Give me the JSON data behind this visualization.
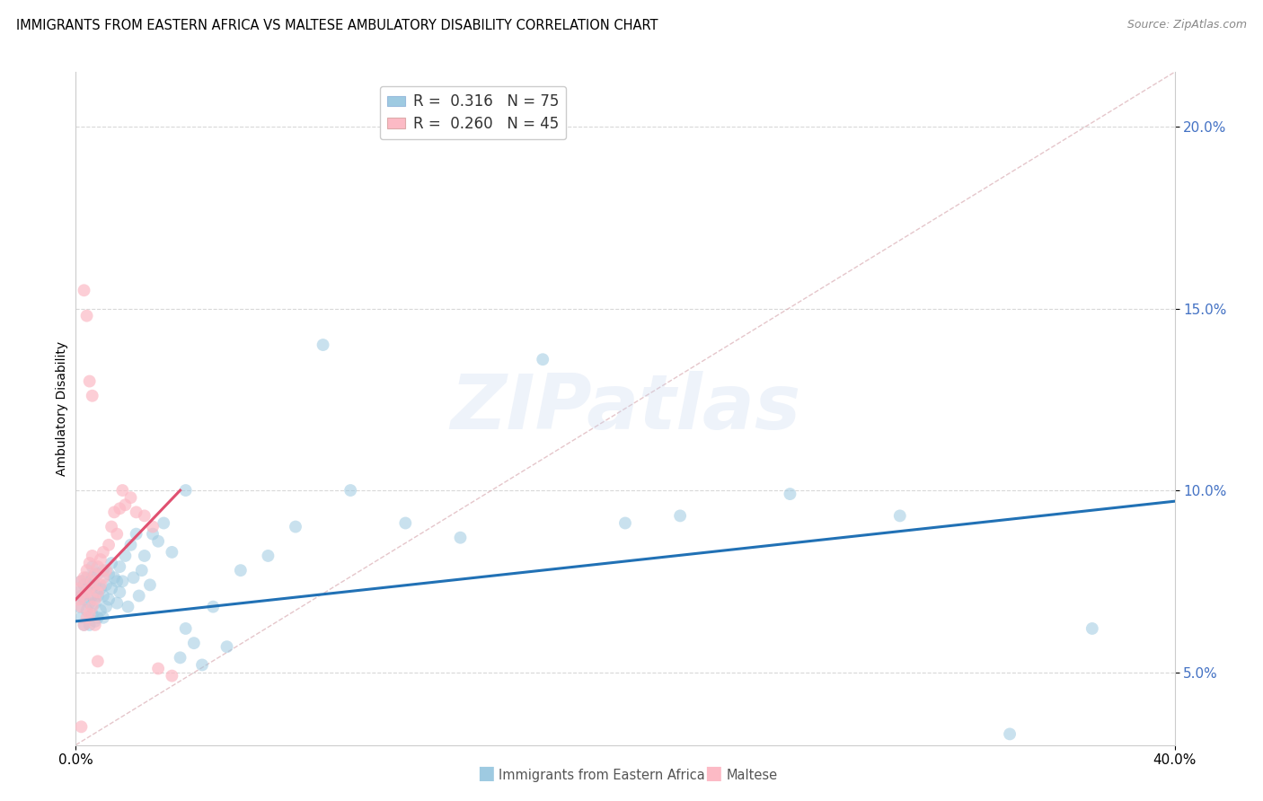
{
  "title": "IMMIGRANTS FROM EASTERN AFRICA VS MALTESE AMBULATORY DISABILITY CORRELATION CHART",
  "source": "Source: ZipAtlas.com",
  "ylabel": "Ambulatory Disability",
  "series1_label": "Immigrants from Eastern Africa",
  "series1_color": "#9ecae1",
  "series1_line_color": "#2171b5",
  "series1_R": "0.316",
  "series1_N": "75",
  "series2_label": "Maltese",
  "series2_color": "#fcbac5",
  "series2_line_color": "#e05070",
  "series2_R": "0.260",
  "series2_N": "45",
  "tick_color": "#4472c4",
  "xlim": [
    0.0,
    0.4
  ],
  "ylim": [
    0.03,
    0.215
  ],
  "yticks": [
    0.05,
    0.1,
    0.15,
    0.2
  ],
  "ytick_labels": [
    "5.0%",
    "10.0%",
    "15.0%",
    "20.0%"
  ],
  "xtick_labels": [
    "0.0%",
    "40.0%"
  ],
  "xtick_positions": [
    0.0,
    0.4
  ],
  "blue_scatter_x": [
    0.001,
    0.001,
    0.002,
    0.002,
    0.002,
    0.003,
    0.003,
    0.003,
    0.004,
    0.004,
    0.004,
    0.005,
    0.005,
    0.005,
    0.006,
    0.006,
    0.006,
    0.006,
    0.007,
    0.007,
    0.007,
    0.008,
    0.008,
    0.008,
    0.009,
    0.009,
    0.01,
    0.01,
    0.01,
    0.011,
    0.011,
    0.012,
    0.012,
    0.013,
    0.013,
    0.014,
    0.015,
    0.015,
    0.016,
    0.016,
    0.017,
    0.018,
    0.019,
    0.02,
    0.021,
    0.022,
    0.023,
    0.024,
    0.025,
    0.027,
    0.028,
    0.03,
    0.032,
    0.035,
    0.038,
    0.04,
    0.043,
    0.046,
    0.05,
    0.055,
    0.06,
    0.07,
    0.08,
    0.1,
    0.12,
    0.14,
    0.17,
    0.2,
    0.22,
    0.26,
    0.3,
    0.34,
    0.37,
    0.04,
    0.09
  ],
  "blue_scatter_y": [
    0.072,
    0.068,
    0.065,
    0.071,
    0.075,
    0.063,
    0.07,
    0.074,
    0.067,
    0.073,
    0.076,
    0.063,
    0.069,
    0.074,
    0.066,
    0.071,
    0.076,
    0.079,
    0.064,
    0.069,
    0.074,
    0.065,
    0.071,
    0.077,
    0.067,
    0.073,
    0.065,
    0.071,
    0.078,
    0.068,
    0.074,
    0.07,
    0.077,
    0.073,
    0.08,
    0.076,
    0.069,
    0.075,
    0.072,
    0.079,
    0.075,
    0.082,
    0.068,
    0.085,
    0.076,
    0.088,
    0.071,
    0.078,
    0.082,
    0.074,
    0.088,
    0.086,
    0.091,
    0.083,
    0.054,
    0.062,
    0.058,
    0.052,
    0.068,
    0.057,
    0.078,
    0.082,
    0.09,
    0.1,
    0.091,
    0.087,
    0.136,
    0.091,
    0.093,
    0.099,
    0.093,
    0.033,
    0.062,
    0.1,
    0.14
  ],
  "pink_scatter_x": [
    0.001,
    0.001,
    0.002,
    0.002,
    0.003,
    0.003,
    0.003,
    0.004,
    0.004,
    0.004,
    0.005,
    0.005,
    0.005,
    0.006,
    0.006,
    0.006,
    0.007,
    0.007,
    0.008,
    0.008,
    0.009,
    0.009,
    0.01,
    0.01,
    0.011,
    0.012,
    0.013,
    0.014,
    0.015,
    0.016,
    0.017,
    0.018,
    0.02,
    0.022,
    0.025,
    0.028,
    0.03,
    0.035,
    0.003,
    0.004,
    0.005,
    0.006,
    0.007,
    0.008,
    0.002
  ],
  "pink_scatter_y": [
    0.07,
    0.073,
    0.068,
    0.075,
    0.063,
    0.071,
    0.076,
    0.065,
    0.072,
    0.078,
    0.066,
    0.073,
    0.08,
    0.068,
    0.075,
    0.082,
    0.07,
    0.077,
    0.072,
    0.079,
    0.074,
    0.081,
    0.076,
    0.083,
    0.078,
    0.085,
    0.09,
    0.094,
    0.088,
    0.095,
    0.1,
    0.096,
    0.098,
    0.094,
    0.093,
    0.09,
    0.051,
    0.049,
    0.155,
    0.148,
    0.13,
    0.126,
    0.063,
    0.053,
    0.035
  ],
  "blue_trend_x": [
    0.0,
    0.4
  ],
  "blue_trend_y": [
    0.064,
    0.097
  ],
  "pink_trend_x": [
    0.0,
    0.038
  ],
  "pink_trend_y": [
    0.07,
    0.1
  ],
  "ref_line_x": [
    0.0,
    0.4
  ],
  "ref_line_y": [
    0.03,
    0.215
  ],
  "background_color": "#ffffff",
  "grid_color": "#d8d8d8",
  "title_fontsize": 10.5,
  "ylabel_fontsize": 10,
  "tick_fontsize": 11,
  "legend_fontsize": 12,
  "source_fontsize": 9,
  "marker_size": 100,
  "trend_lw": 2.2,
  "ref_lw": 1.0
}
